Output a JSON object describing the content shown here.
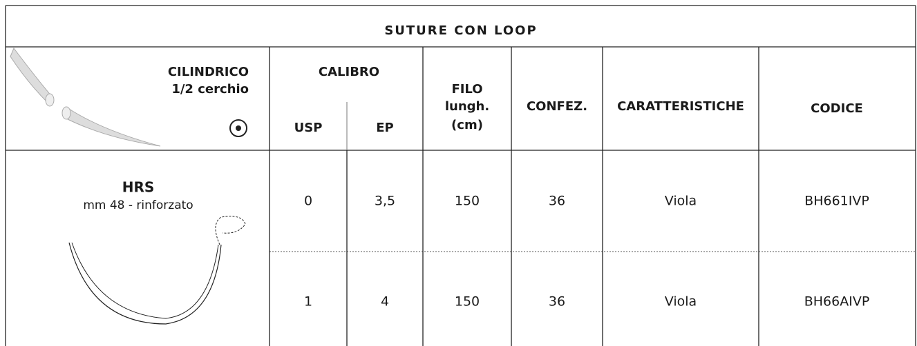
{
  "table": {
    "title": "SUTURE CON LOOP",
    "header": {
      "needle_type": "CILINDRICO",
      "needle_curve": "1/2 cerchio",
      "calibro": "CALIBRO",
      "usp": "USP",
      "ep": "EP",
      "filo": [
        "FILO",
        "lungh.",
        "(cm)"
      ],
      "confez": "CONFEZ.",
      "caratteristiche": "CARATTERISTICHE",
      "codice": "CODICE"
    },
    "needle": {
      "name": "HRS",
      "description": "mm 48 - rinforzato"
    },
    "rows": [
      [
        "0",
        "3,5",
        "150",
        "36",
        "Viola",
        "BH661IVP"
      ],
      [
        "1",
        "4",
        "150",
        "36",
        "Viola",
        "BH66AIVP"
      ]
    ]
  }
}
